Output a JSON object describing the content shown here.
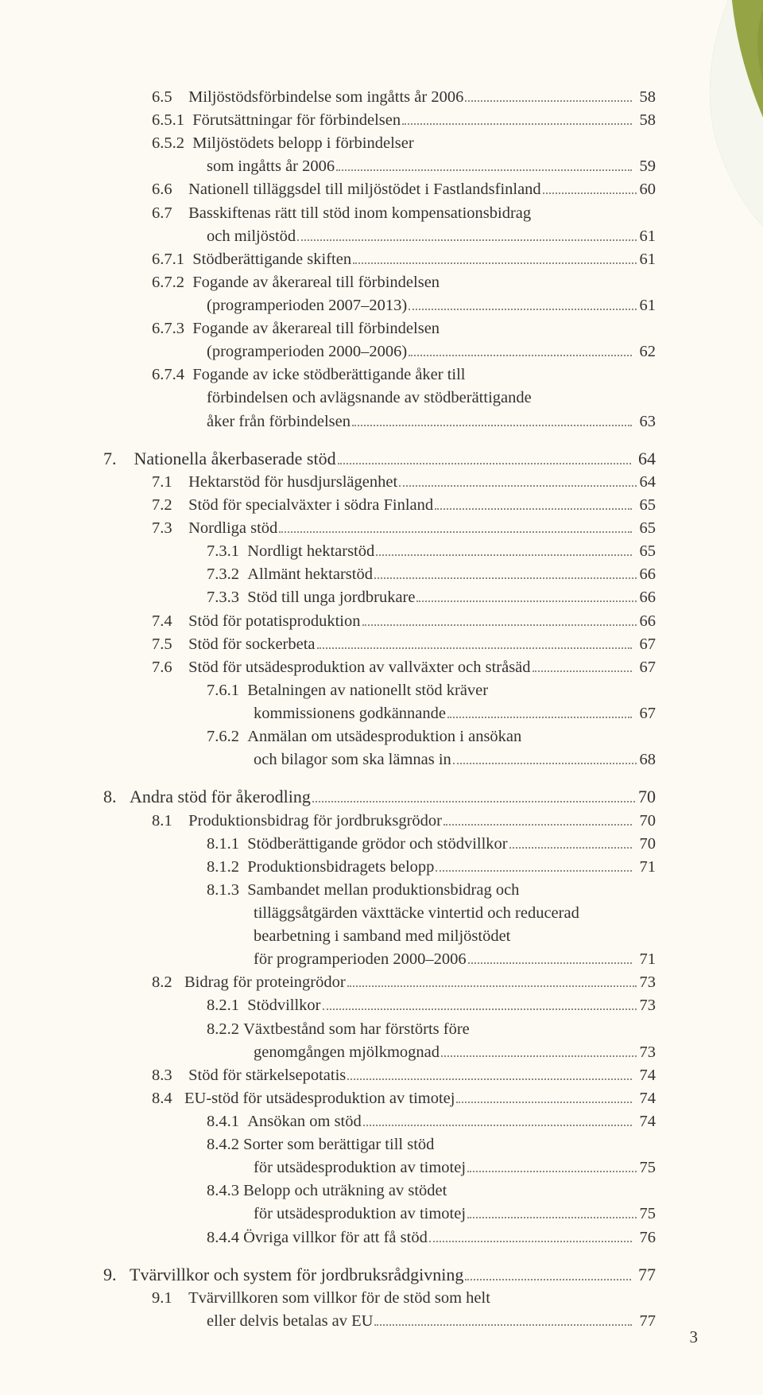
{
  "colors": {
    "page_bg": "#fdfaf3",
    "text": "#333230",
    "dot": "#888888",
    "leaf_green": "#95a545",
    "leaf_dark": "#6f7a2e"
  },
  "page_number": "3",
  "toc": [
    {
      "lvl": 1,
      "num": "6.5    ",
      "title": "Miljöstödsförbindelse som ingåtts år 2006",
      "page": " 58"
    },
    {
      "lvl": 1,
      "num": "6.5.1  ",
      "title": "Förutsättningar för förbindelsen",
      "page": " 58"
    },
    {
      "lvl": 1,
      "num": "6.5.2  ",
      "title": "Miljöstödets belopp i förbindelser",
      "page": null
    },
    {
      "lvl": 2,
      "num": "",
      "title": "som ingåtts år 2006",
      "page": " 59"
    },
    {
      "lvl": 1,
      "num": "6.6    ",
      "title": "Nationell tilläggsdel till miljöstödet i Fastlandsfinland",
      "page": "60"
    },
    {
      "lvl": 1,
      "num": "6.7    ",
      "title": "Basskiftenas rätt till stöd inom kompensationsbidrag",
      "page": null
    },
    {
      "lvl": 2,
      "num": "",
      "title": "och miljöstöd",
      "page": "61"
    },
    {
      "lvl": 1,
      "num": "6.7.1  ",
      "title": "Stödberättigande skiften",
      "page": "61"
    },
    {
      "lvl": 1,
      "num": "6.7.2  ",
      "title": "Fogande av åkerareal till förbindelsen",
      "page": null
    },
    {
      "lvl": 2,
      "num": "",
      "title": "(programperioden 2007–2013)",
      "page": "61"
    },
    {
      "lvl": 1,
      "num": "6.7.3  ",
      "title": "Fogande av åkerareal till förbindelsen",
      "page": null
    },
    {
      "lvl": 2,
      "num": "",
      "title": "(programperioden 2000–2006)",
      "page": " 62"
    },
    {
      "lvl": 1,
      "num": "6.7.4  ",
      "title": "Fogande av icke stödberättigande åker till",
      "page": null
    },
    {
      "lvl": 2,
      "num": "",
      "title": "förbindelsen och avlägsnande av stödberättigande",
      "page": null,
      "cont": true
    },
    {
      "lvl": 2,
      "num": "",
      "title": "åker från förbindelsen",
      "page": " 63"
    },
    {
      "gap": "md"
    },
    {
      "lvl": 0,
      "num": "7.    ",
      "title": "Nationella åkerbaserade stöd",
      "page": " 64",
      "head": true
    },
    {
      "lvl": 1,
      "num": "7.1    ",
      "title": "Hektarstöd för husdjurslägenhet",
      "page": "64"
    },
    {
      "lvl": 1,
      "num": "7.2    ",
      "title": "Stöd för specialväxter i södra Finland",
      "page": " 65"
    },
    {
      "lvl": 1,
      "num": "7.3    ",
      "title": "Nordliga stöd",
      "page": " 65"
    },
    {
      "lvl": 2,
      "num": "7.3.1  ",
      "title": "Nordligt hektarstöd",
      "page": " 65"
    },
    {
      "lvl": 2,
      "num": "7.3.2  ",
      "title": "Allmänt hektarstöd",
      "page": "66"
    },
    {
      "lvl": 2,
      "num": "7.3.3  ",
      "title": "Stöd till unga jordbrukare",
      "page": "66"
    },
    {
      "lvl": 1,
      "num": "7.4    ",
      "title": "Stöd för potatisproduktion",
      "page": "66"
    },
    {
      "lvl": 1,
      "num": "7.5    ",
      "title": "Stöd för sockerbeta",
      "page": " 67"
    },
    {
      "lvl": 1,
      "num": "7.6    ",
      "title": "Stöd för utsädesproduktion av vallväxter och stråsäd",
      "page": " 67"
    },
    {
      "lvl": 2,
      "num": "7.6.1  ",
      "title": "Betalningen av nationellt stöd kräver",
      "page": null
    },
    {
      "lvl": 3,
      "num": "",
      "title": "kommissionens godkännande",
      "page": " 67"
    },
    {
      "lvl": 2,
      "num": "7.6.2  ",
      "title": "Anmälan om utsädesproduktion i ansökan",
      "page": null
    },
    {
      "lvl": 3,
      "num": "",
      "title": "och bilagor som ska lämnas in",
      "page": "68"
    },
    {
      "gap": "md"
    },
    {
      "lvl": 0,
      "num": "8.   ",
      "title": "Andra stöd för åkerodling",
      "page": "70",
      "head": true
    },
    {
      "lvl": 1,
      "num": "8.1    ",
      "title": "Produktionsbidrag för jordbruksgrödor",
      "page": " 70"
    },
    {
      "lvl": 2,
      "num": "8.1.1  ",
      "title": "Stödberättigande grödor och stödvillkor",
      "page": " 70"
    },
    {
      "lvl": 2,
      "num": "8.1.2  ",
      "title": "Produktionsbidragets belopp",
      "page": " 71"
    },
    {
      "lvl": 2,
      "num": "8.1.3  ",
      "title": "Sambandet mellan produktionsbidrag och",
      "page": null
    },
    {
      "lvl": 3,
      "num": "",
      "title": "tilläggsåtgärden växttäcke vintertid och reducerad",
      "page": null,
      "cont": true
    },
    {
      "lvl": 3,
      "num": "",
      "title": "bearbetning i samband med miljöstödet",
      "page": null,
      "cont": true
    },
    {
      "lvl": 3,
      "num": "",
      "title": "för programperioden 2000–2006",
      "page": " 71"
    },
    {
      "lvl": 1,
      "num": "8.2   ",
      "title": "Bidrag för proteingrödor",
      "page": "73"
    },
    {
      "lvl": 2,
      "num": "8.2.1  ",
      "title": "Stödvillkor",
      "page": "73"
    },
    {
      "lvl": 2,
      "num": "8.2.2 ",
      "title": "Växtbestånd som har förstörts före",
      "page": null
    },
    {
      "lvl": 3,
      "num": "",
      "title": "genomgången mjölkmognad",
      "page": "73"
    },
    {
      "lvl": 1,
      "num": "8.3    ",
      "title": "Stöd för stärkelsepotatis",
      "page": " 74"
    },
    {
      "lvl": 1,
      "num": "8.4   ",
      "title": "EU-stöd för utsädesproduktion av timotej",
      "page": " 74"
    },
    {
      "lvl": 2,
      "num": "8.4.1  ",
      "title": "Ansökan om stöd",
      "page": " 74"
    },
    {
      "lvl": 2,
      "num": "8.4.2 ",
      "title": "Sorter som berättigar till stöd",
      "page": null
    },
    {
      "lvl": 3,
      "num": "",
      "title": "för utsädesproduktion av timotej",
      "page": "75"
    },
    {
      "lvl": 2,
      "num": "8.4.3 ",
      "title": "Belopp och uträkning av stödet",
      "page": null
    },
    {
      "lvl": 3,
      "num": "",
      "title": "för utsädesproduktion av timotej",
      "page": "75"
    },
    {
      "lvl": 2,
      "num": "8.4.4 ",
      "title": "Övriga villkor för att få stöd",
      "page": " 76"
    },
    {
      "gap": "md"
    },
    {
      "lvl": 0,
      "num": "9.   ",
      "title": "Tvärvillkor och system för jordbruksrådgivning",
      "page": " 77",
      "head": true
    },
    {
      "lvl": 1,
      "num": "9.1    ",
      "title": "Tvärvillkoren som villkor för de stöd som helt",
      "page": null
    },
    {
      "lvl": 2,
      "num": "",
      "title": "eller delvis betalas av EU",
      "page": " 77"
    }
  ]
}
